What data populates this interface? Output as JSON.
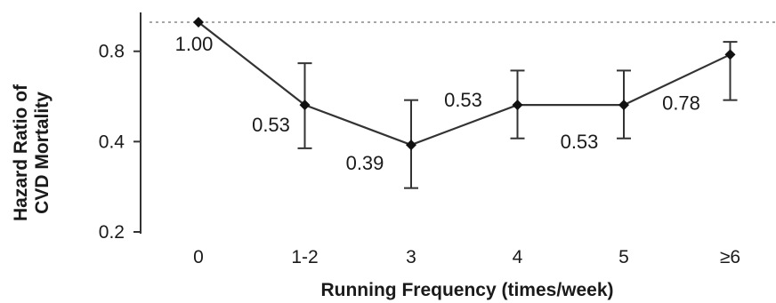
{
  "chart_data": {
    "type": "line",
    "xlabel": "Running Frequency (times/week)",
    "ylabel_line1": "Hazard Ratio of",
    "ylabel_line2": "CVD Mortality",
    "categories": [
      "0",
      "1-2",
      "3",
      "4",
      "5",
      "≥6"
    ],
    "values": [
      1.0,
      0.53,
      0.39,
      0.53,
      0.53,
      0.78
    ],
    "value_labels": [
      "1.00",
      "0.53",
      "0.39",
      "0.53",
      "0.53",
      "0.78"
    ],
    "error_low": [
      null,
      0.38,
      0.28,
      0.41,
      0.41,
      0.55
    ],
    "error_high": [
      null,
      0.73,
      0.55,
      0.69,
      0.69,
      0.86
    ],
    "reference_line": 1.0,
    "yticks": [
      0.2,
      0.4,
      0.8
    ],
    "ytick_labels": [
      "0.2",
      "0.4",
      "0.8"
    ],
    "y_scale": "log",
    "ylim": [
      0.2,
      1.0
    ],
    "grid": false,
    "line_color": "#333333",
    "reference_line_color": "#888888"
  }
}
